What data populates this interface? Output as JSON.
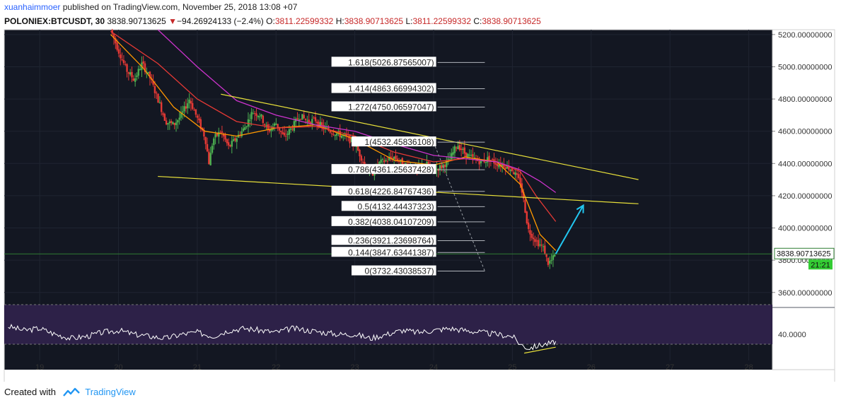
{
  "header": {
    "author": "xuanhaimmoer",
    "published_text": "published on TradingView.com, November 25, 2018 13:08 +07",
    "symbol": "POLONIEX:BTCUSDT, 30",
    "last": "3838.90713625",
    "change": "−94.26924133 (−2.4%)",
    "o_label": "O:",
    "o_value": "3811.22599332",
    "h_label": "H:",
    "h_value": "3838.90713625",
    "l_label": "L:",
    "l_value": "3811.22599332",
    "c_label": "C:",
    "c_value": "3838.90713625"
  },
  "footer": {
    "created_with": "Created with",
    "brand": "TradingView"
  },
  "colors": {
    "background": "#131722",
    "up": "#4caf50",
    "down": "#e53935",
    "wedge": "#e8e03a",
    "ma_fast": "#ff9800",
    "ma_mid": "#e53935",
    "ma_slow": "#cc33cc",
    "arrow": "#22c6f0",
    "rsi_band": "#2d2148",
    "rsi_line": "#ffffff"
  },
  "chart_data": {
    "type": "candlestick",
    "price_axis": {
      "ticks": [
        "5200.00000000",
        "5000.00000000",
        "4800.00000000",
        "4600.00000000",
        "4400.00000000",
        "4200.00000000",
        "4000.00000000",
        "3800.00000000",
        "3600.00000000"
      ],
      "tick_values": [
        5200,
        5000,
        4800,
        4600,
        4400,
        4200,
        4000,
        3800,
        3600
      ],
      "range": [
        3520,
        5230
      ]
    },
    "time_axis": {
      "ticks": [
        "19",
        "20",
        "21",
        "22",
        "23",
        "24",
        "25",
        "26",
        "27",
        "28"
      ],
      "tick_values": [
        19,
        20,
        21,
        22,
        23,
        24,
        25,
        26,
        27,
        28
      ],
      "range": [
        18.55,
        28.3
      ]
    },
    "last_price_label": "3838.90713625",
    "last_price": 3838.9,
    "countdown_label": "21:21",
    "price_path": [
      [
        19.9,
        5230
      ],
      [
        20.0,
        5100
      ],
      [
        20.1,
        4980
      ],
      [
        20.2,
        4920
      ],
      [
        20.3,
        5020
      ],
      [
        20.4,
        4930
      ],
      [
        20.5,
        4800
      ],
      [
        20.6,
        4660
      ],
      [
        20.7,
        4640
      ],
      [
        20.8,
        4700
      ],
      [
        20.9,
        4800
      ],
      [
        21.0,
        4680
      ],
      [
        21.1,
        4560
      ],
      [
        21.15,
        4400
      ],
      [
        21.2,
        4550
      ],
      [
        21.3,
        4600
      ],
      [
        21.4,
        4500
      ],
      [
        21.5,
        4560
      ],
      [
        21.6,
        4620
      ],
      [
        21.7,
        4720
      ],
      [
        21.8,
        4700
      ],
      [
        21.9,
        4600
      ],
      [
        22.0,
        4650
      ],
      [
        22.1,
        4560
      ],
      [
        22.2,
        4620
      ],
      [
        22.3,
        4700
      ],
      [
        22.4,
        4660
      ],
      [
        22.5,
        4670
      ],
      [
        22.6,
        4620
      ],
      [
        22.7,
        4600
      ],
      [
        22.8,
        4580
      ],
      [
        22.9,
        4560
      ],
      [
        23.0,
        4520
      ],
      [
        23.1,
        4420
      ],
      [
        23.2,
        4320
      ],
      [
        23.3,
        4400
      ],
      [
        23.4,
        4420
      ],
      [
        23.5,
        4440
      ],
      [
        23.6,
        4400
      ],
      [
        23.7,
        4380
      ],
      [
        23.8,
        4360
      ],
      [
        23.9,
        4400
      ],
      [
        24.0,
        4360
      ],
      [
        24.1,
        4380
      ],
      [
        24.2,
        4420
      ],
      [
        24.3,
        4520
      ],
      [
        24.4,
        4460
      ],
      [
        24.5,
        4430
      ],
      [
        24.6,
        4410
      ],
      [
        24.7,
        4430
      ],
      [
        24.8,
        4400
      ],
      [
        24.9,
        4390
      ],
      [
        25.0,
        4360
      ],
      [
        25.1,
        4280
      ],
      [
        25.15,
        4150
      ],
      [
        25.2,
        3990
      ],
      [
        25.3,
        3920
      ],
      [
        25.4,
        3870
      ],
      [
        25.45,
        3780
      ],
      [
        25.5,
        3800
      ],
      [
        25.55,
        3838.9
      ]
    ],
    "moving_averages": [
      {
        "points": [
          [
            19.9,
            5200
          ],
          [
            20.3,
            5000
          ],
          [
            20.7,
            4750
          ],
          [
            21.1,
            4600
          ],
          [
            21.5,
            4570
          ],
          [
            22.0,
            4620
          ],
          [
            22.5,
            4640
          ],
          [
            23.0,
            4550
          ],
          [
            23.5,
            4420
          ],
          [
            24.0,
            4390
          ],
          [
            24.4,
            4440
          ],
          [
            24.8,
            4410
          ],
          [
            25.1,
            4270
          ],
          [
            25.35,
            3960
          ],
          [
            25.55,
            3860
          ]
        ]
      },
      {
        "points": [
          [
            19.9,
            5220
          ],
          [
            20.5,
            5020
          ],
          [
            21.0,
            4800
          ],
          [
            21.5,
            4660
          ],
          [
            22.0,
            4620
          ],
          [
            22.5,
            4630
          ],
          [
            23.0,
            4570
          ],
          [
            23.5,
            4470
          ],
          [
            24.0,
            4410
          ],
          [
            24.4,
            4430
          ],
          [
            24.8,
            4410
          ],
          [
            25.1,
            4350
          ],
          [
            25.3,
            4200
          ],
          [
            25.55,
            4040
          ]
        ]
      },
      {
        "points": [
          [
            20.5,
            5230
          ],
          [
            21.0,
            5000
          ],
          [
            21.5,
            4790
          ],
          [
            22.0,
            4700
          ],
          [
            22.5,
            4640
          ],
          [
            23.0,
            4600
          ],
          [
            23.5,
            4520
          ],
          [
            24.0,
            4450
          ],
          [
            24.4,
            4430
          ],
          [
            24.8,
            4410
          ],
          [
            25.1,
            4360
          ],
          [
            25.35,
            4290
          ],
          [
            25.55,
            4220
          ]
        ]
      }
    ],
    "wedge_lines": [
      [
        [
          21.3,
          4830
        ],
        [
          26.6,
          4300
        ]
      ],
      [
        [
          20.5,
          4320
        ],
        [
          26.6,
          4150
        ]
      ]
    ],
    "projection_arrow": [
      [
        25.55,
        3838.9
      ],
      [
        25.9,
        4140
      ]
    ],
    "retracement_anchor": [
      [
        24.0,
        4530
      ],
      [
        24.65,
        3732
      ]
    ],
    "fib_levels": [
      {
        "label": "1.618(5026.87565007)",
        "value": 5026.87565007
      },
      {
        "label": "1.414(4863.66994302)",
        "value": 4863.66994302
      },
      {
        "label": "1.272(4750.06597047)",
        "value": 4750.06597047
      },
      {
        "label": "1(4532.45836108)",
        "value": 4532.45836108
      },
      {
        "label": "0.786(4361.25637428)",
        "value": 4361.25637428
      },
      {
        "label": "0.618(4226.84767436)",
        "value": 4226.84767436
      },
      {
        "label": "0.5(4132.44437323)",
        "value": 4132.44437323
      },
      {
        "label": "0.382(4038.04107209)",
        "value": 4038.04107209
      },
      {
        "label": "0.236(3921.23698764)",
        "value": 3921.23698764
      },
      {
        "label": "0.144(3847.63441387)",
        "value": 3847.63441387
      },
      {
        "label": "0(3732.43038537)",
        "value": 3732.43038537
      }
    ],
    "fib_span": [
      24.05,
      24.65
    ],
    "rsi": {
      "ticks": [
        "40.0000"
      ],
      "tick_values": [
        40
      ],
      "range": [
        15,
        65
      ],
      "band": [
        30,
        70
      ],
      "path": [
        [
          18.6,
          48
        ],
        [
          18.8,
          44
        ],
        [
          19.0,
          46
        ],
        [
          19.2,
          40
        ],
        [
          19.4,
          36
        ],
        [
          19.6,
          38
        ],
        [
          19.8,
          42
        ],
        [
          20.0,
          44
        ],
        [
          20.2,
          40
        ],
        [
          20.4,
          38
        ],
        [
          20.6,
          36
        ],
        [
          20.8,
          40
        ],
        [
          21.0,
          42
        ],
        [
          21.2,
          38
        ],
        [
          21.4,
          44
        ],
        [
          21.6,
          46
        ],
        [
          21.8,
          44
        ],
        [
          22.0,
          42
        ],
        [
          22.2,
          46
        ],
        [
          22.4,
          44
        ],
        [
          22.6,
          42
        ],
        [
          22.8,
          40
        ],
        [
          23.0,
          40
        ],
        [
          23.2,
          36
        ],
        [
          23.4,
          40
        ],
        [
          23.6,
          44
        ],
        [
          23.8,
          42
        ],
        [
          24.0,
          44
        ],
        [
          24.2,
          46
        ],
        [
          24.4,
          44
        ],
        [
          24.6,
          42
        ],
        [
          24.8,
          40
        ],
        [
          25.0,
          38
        ],
        [
          25.1,
          30
        ],
        [
          25.2,
          26
        ],
        [
          25.3,
          28
        ],
        [
          25.4,
          30
        ],
        [
          25.5,
          31
        ],
        [
          25.55,
          33
        ]
      ],
      "divergence_line": [
        [
          25.15,
          21
        ],
        [
          25.55,
          27
        ]
      ]
    }
  }
}
